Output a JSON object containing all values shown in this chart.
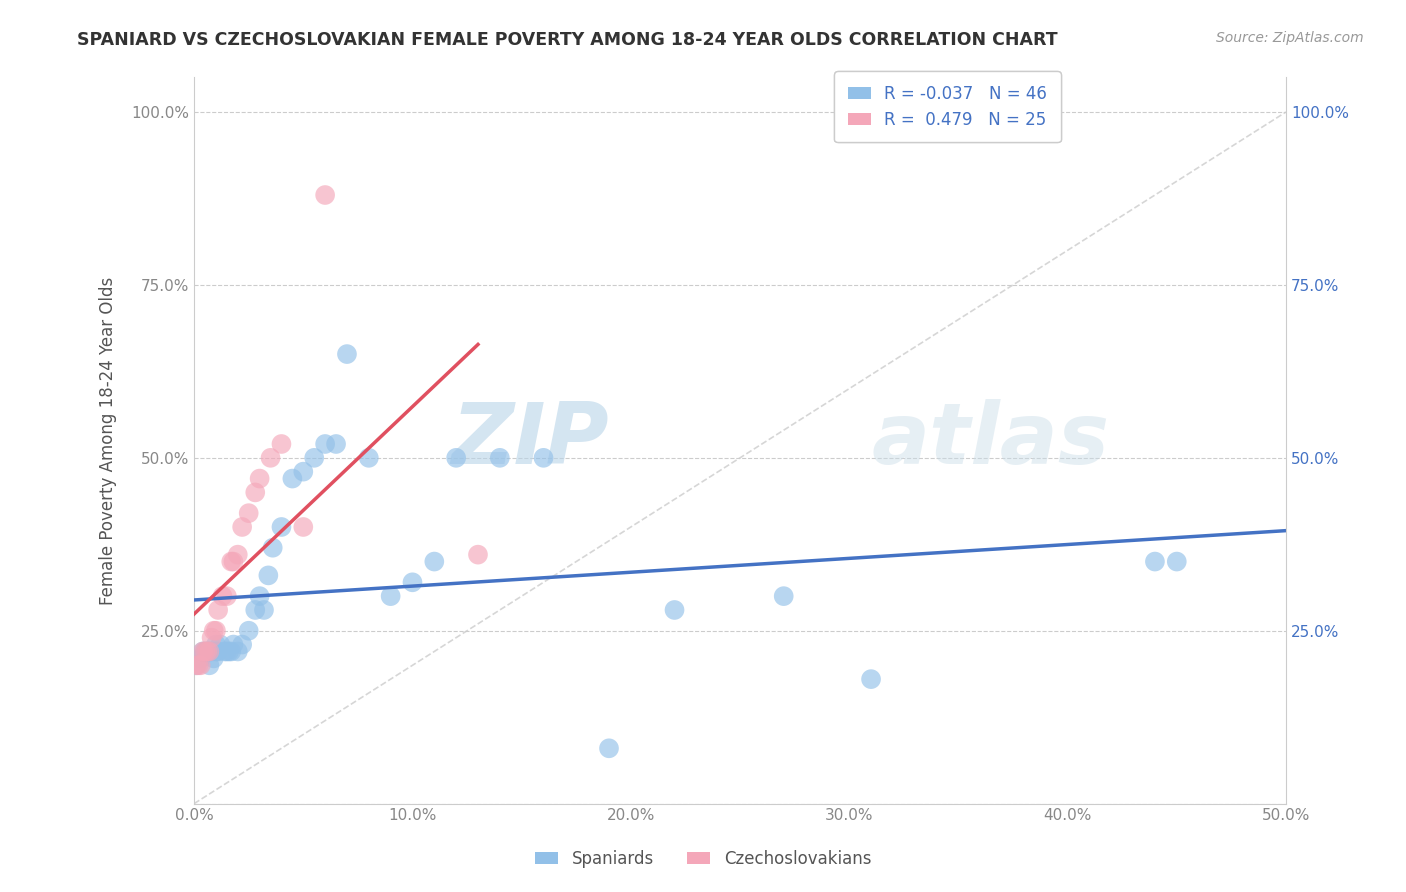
{
  "title": "SPANIARD VS CZECHOSLOVAKIAN FEMALE POVERTY AMONG 18-24 YEAR OLDS CORRELATION CHART",
  "source": "Source: ZipAtlas.com",
  "ylabel": "Female Poverty Among 18-24 Year Olds",
  "xlim": [
    0.0,
    0.5
  ],
  "ylim": [
    0.0,
    1.05
  ],
  "xticks": [
    0.0,
    0.1,
    0.2,
    0.3,
    0.4,
    0.5
  ],
  "xticklabels": [
    "0.0%",
    "10.0%",
    "20.0%",
    "30.0%",
    "40.0%",
    "50.0%"
  ],
  "yticks": [
    0.0,
    0.25,
    0.5,
    0.75,
    1.0
  ],
  "yticklabels_left": [
    "",
    "25.0%",
    "50.0%",
    "75.0%",
    "100.0%"
  ],
  "yticklabels_right": [
    "",
    "25.0%",
    "50.0%",
    "75.0%",
    "100.0%"
  ],
  "spanyard_color": "#92c0e8",
  "czech_color": "#f4a7b9",
  "trend_spanyard_color": "#4472c4",
  "trend_czech_color": "#e05060",
  "R_spanyard": -0.037,
  "N_spanyard": 46,
  "R_czech": 0.479,
  "N_czech": 25,
  "diagonal_color": "#cccccc",
  "watermark_zip": "ZIP",
  "watermark_atlas": "atlas",
  "spaniards_x": [
    0.001,
    0.003,
    0.004,
    0.005,
    0.006,
    0.007,
    0.007,
    0.008,
    0.009,
    0.01,
    0.01,
    0.011,
    0.012,
    0.014,
    0.015,
    0.016,
    0.017,
    0.018,
    0.02,
    0.022,
    0.025,
    0.028,
    0.03,
    0.032,
    0.034,
    0.036,
    0.04,
    0.045,
    0.05,
    0.055,
    0.06,
    0.065,
    0.07,
    0.08,
    0.09,
    0.1,
    0.11,
    0.12,
    0.14,
    0.16,
    0.19,
    0.22,
    0.27,
    0.31,
    0.44,
    0.45
  ],
  "spaniards_y": [
    0.2,
    0.21,
    0.22,
    0.22,
    0.22,
    0.2,
    0.22,
    0.22,
    0.21,
    0.22,
    0.23,
    0.22,
    0.23,
    0.22,
    0.22,
    0.22,
    0.22,
    0.23,
    0.22,
    0.23,
    0.25,
    0.28,
    0.3,
    0.28,
    0.33,
    0.37,
    0.4,
    0.47,
    0.48,
    0.5,
    0.52,
    0.52,
    0.65,
    0.5,
    0.3,
    0.32,
    0.35,
    0.5,
    0.5,
    0.5,
    0.08,
    0.28,
    0.3,
    0.18,
    0.35,
    0.35
  ],
  "czechs_x": [
    0.001,
    0.002,
    0.003,
    0.004,
    0.005,
    0.006,
    0.007,
    0.008,
    0.009,
    0.01,
    0.011,
    0.013,
    0.015,
    0.017,
    0.018,
    0.02,
    0.022,
    0.025,
    0.028,
    0.03,
    0.035,
    0.04,
    0.05,
    0.06,
    0.13
  ],
  "czechs_y": [
    0.2,
    0.2,
    0.2,
    0.22,
    0.22,
    0.22,
    0.22,
    0.24,
    0.25,
    0.25,
    0.28,
    0.3,
    0.3,
    0.35,
    0.35,
    0.36,
    0.4,
    0.42,
    0.45,
    0.47,
    0.5,
    0.52,
    0.4,
    0.88,
    0.36
  ]
}
